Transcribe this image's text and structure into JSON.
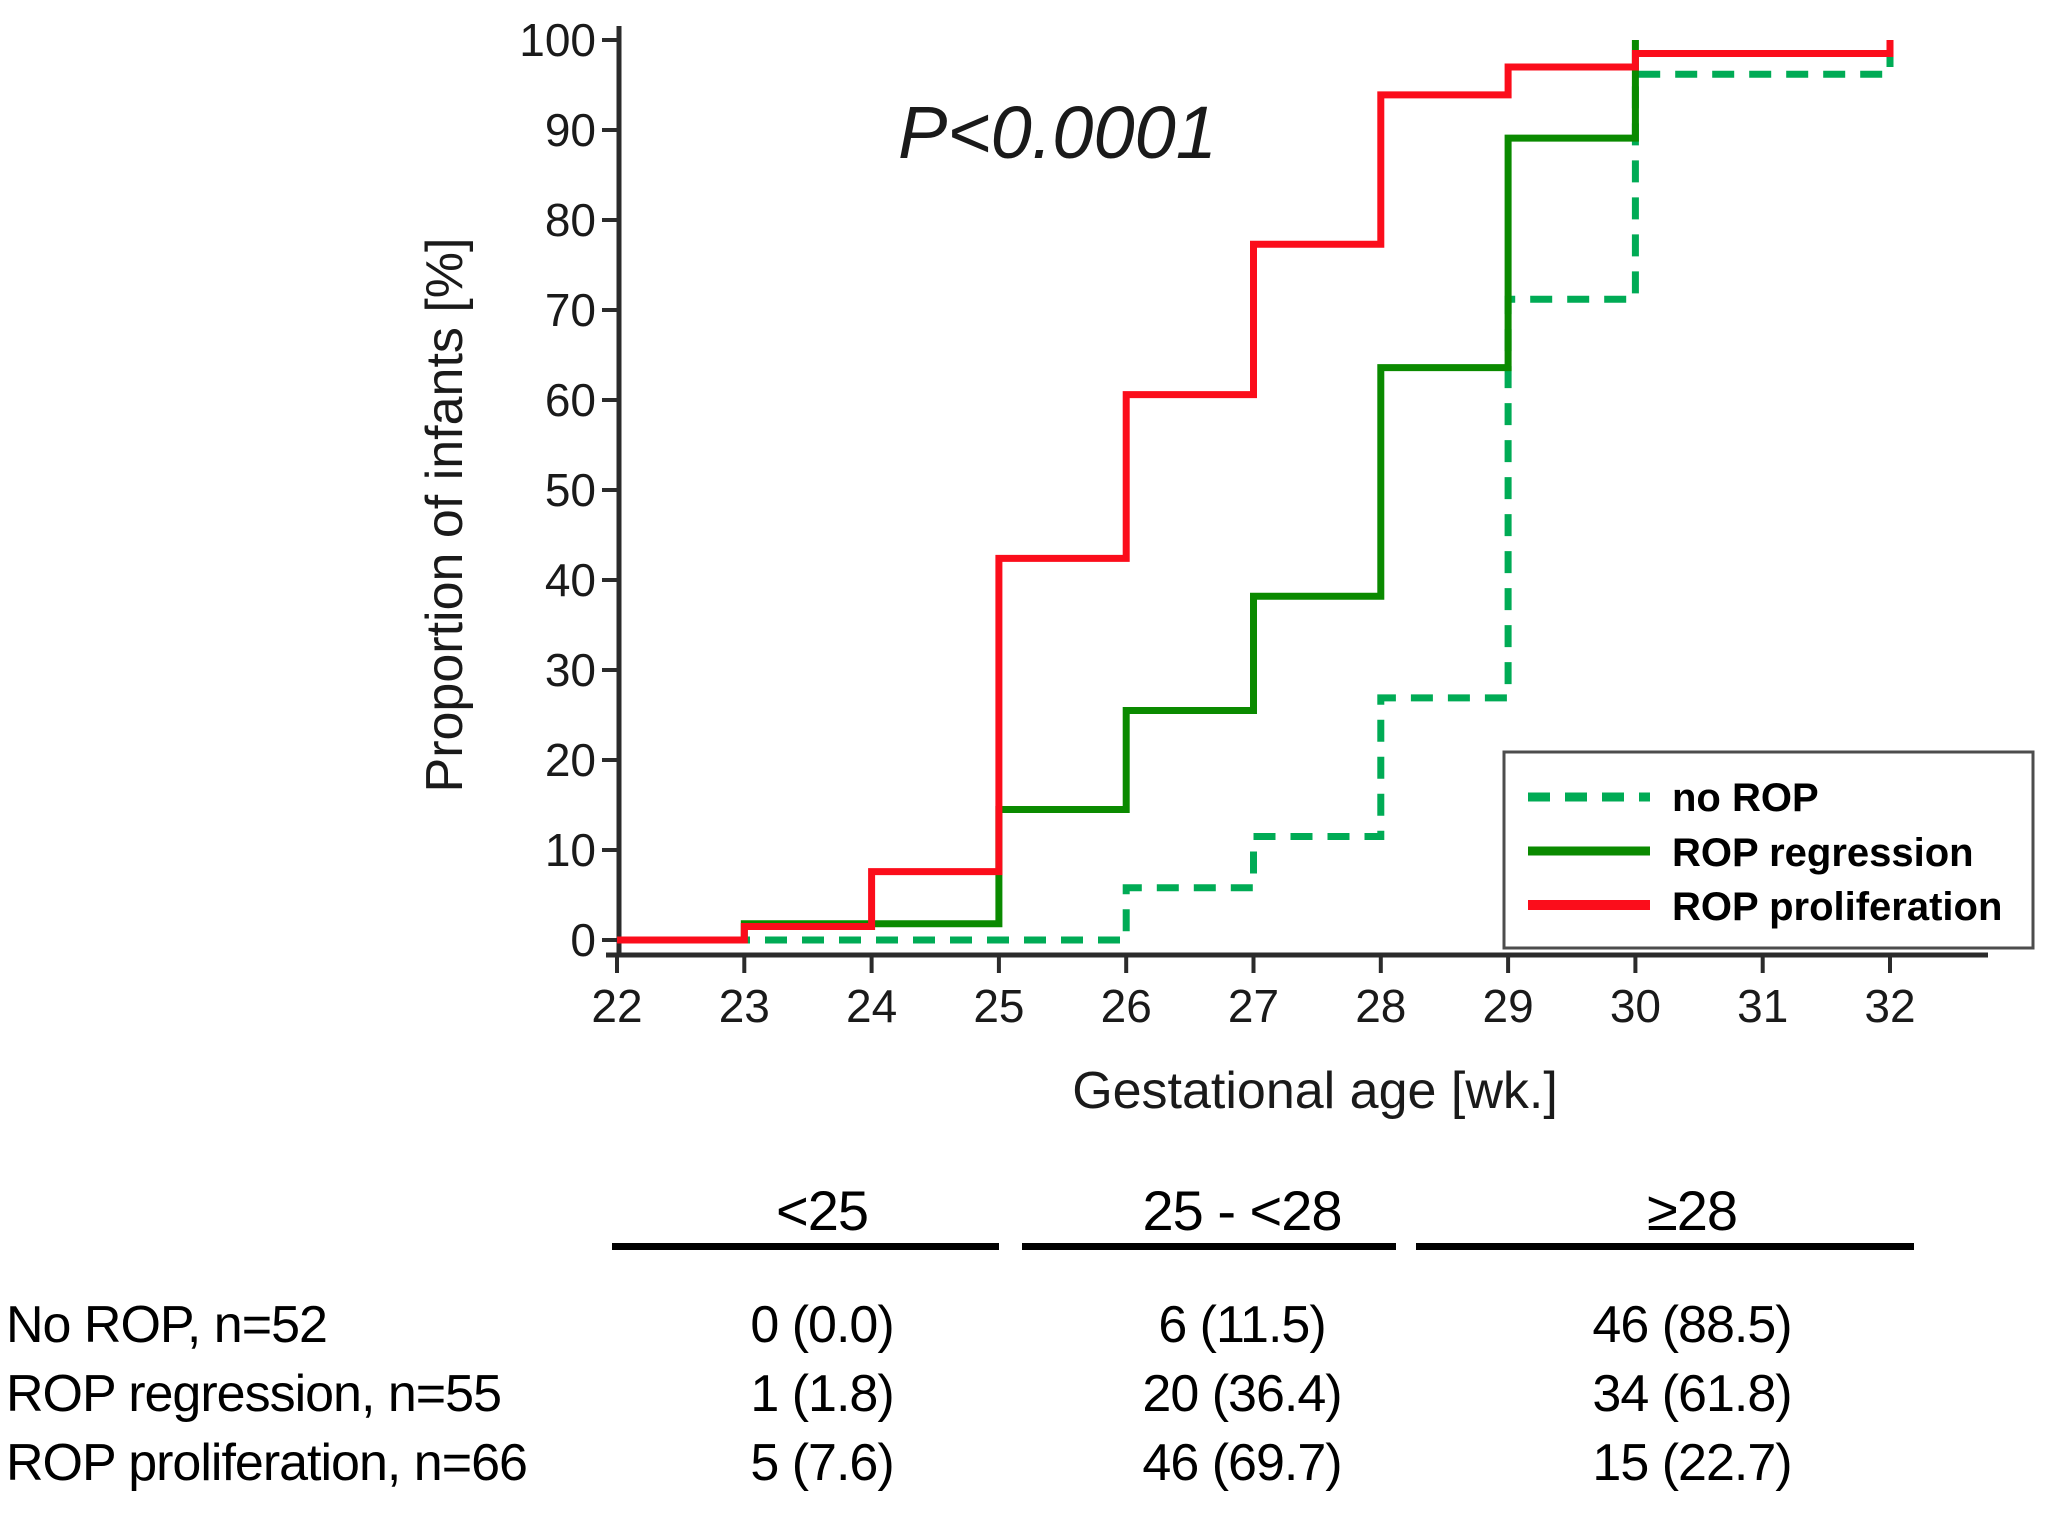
{
  "chart_data": {
    "type": "line",
    "subtype": "cumulative-step",
    "title": "",
    "xlabel": "Gestational age [wk.]",
    "ylabel": "Proportion of infants [%]",
    "annotation": {
      "text": "P<0.0001",
      "color": "#ff0000"
    },
    "x": [
      22,
      23,
      24,
      25,
      26,
      27,
      28,
      29,
      30,
      31,
      32
    ],
    "x_ticks": [
      22,
      23,
      24,
      25,
      26,
      27,
      28,
      29,
      30,
      31,
      32
    ],
    "y_ticks": [
      0,
      10,
      20,
      30,
      40,
      50,
      60,
      70,
      80,
      90,
      100
    ],
    "xlim": [
      22,
      32.8
    ],
    "ylim": [
      0,
      100
    ],
    "grid": false,
    "legend_position": "bottom-right",
    "series": [
      {
        "name": "no ROP",
        "color": "#00ab55",
        "style": "dashed",
        "values": [
          0,
          0,
          0,
          0,
          5.8,
          11.5,
          26.9,
          71.2,
          96.2,
          96.2,
          100
        ]
      },
      {
        "name": "ROP regression",
        "color": "#0a8a00",
        "style": "solid",
        "values": [
          0,
          1.8,
          1.8,
          14.5,
          25.5,
          38.2,
          63.6,
          89.1,
          100,
          null,
          null
        ]
      },
      {
        "name": "ROP proliferation",
        "color": "#fb0d1b",
        "style": "solid",
        "values": [
          0,
          1.5,
          7.6,
          42.4,
          60.6,
          77.3,
          93.9,
          97.0,
          98.5,
          98.5,
          100
        ]
      }
    ]
  },
  "table": {
    "col_headers": [
      "<25",
      "25 - <28",
      "≥28"
    ],
    "rows": [
      {
        "label": "No ROP, n=52",
        "values": [
          "0 (0.0)",
          "6 (11.5)",
          "46 (88.5)"
        ]
      },
      {
        "label": "ROP regression, n=55",
        "values": [
          "1 (1.8)",
          "20 (36.4)",
          "34 (61.8)"
        ]
      },
      {
        "label": "ROP proliferation, n=66",
        "values": [
          "5 (7.6)",
          "46 (69.7)",
          "15 (22.7)"
        ]
      }
    ]
  }
}
